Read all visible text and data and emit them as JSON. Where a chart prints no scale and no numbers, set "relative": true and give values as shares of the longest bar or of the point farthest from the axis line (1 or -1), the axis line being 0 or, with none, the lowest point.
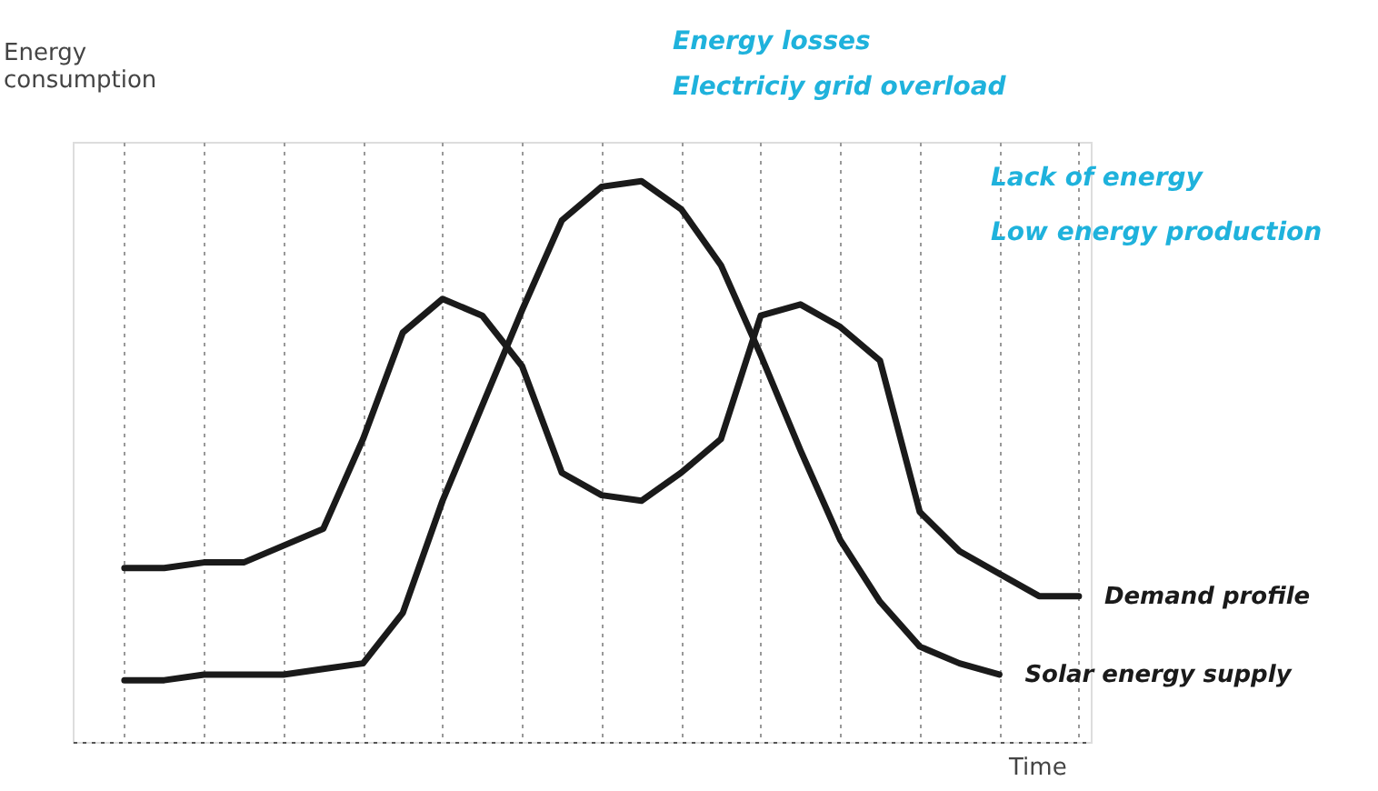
{
  "chart_data": {
    "type": "line",
    "relative": true,
    "xlabel": "Time",
    "ylabel": "Energy consumption",
    "categories": [
      null,
      null,
      null,
      null,
      null,
      null,
      null,
      null,
      null,
      null,
      null,
      null,
      null,
      null,
      null,
      null,
      null,
      null,
      null,
      null,
      null,
      null,
      null,
      null,
      null
    ],
    "series": [
      {
        "name": "Demand profile",
        "color": "#1a1a1a",
        "values": [
          0.31,
          0.31,
          0.32,
          0.32,
          0.35,
          0.38,
          0.54,
          0.73,
          0.79,
          0.76,
          0.67,
          0.48,
          0.44,
          0.43,
          0.48,
          0.54,
          0.76,
          0.78,
          0.74,
          0.68,
          0.41,
          0.34,
          0.3,
          0.26,
          0.26
        ]
      },
      {
        "name": "Solar energy supply",
        "color": "#1a1a1a",
        "values": [
          0.11,
          0.11,
          0.12,
          0.12,
          0.12,
          0.13,
          0.14,
          0.23,
          0.43,
          0.6,
          0.77,
          0.93,
          0.99,
          1.0,
          0.95,
          0.85,
          0.69,
          0.52,
          0.36,
          0.25,
          0.17,
          0.14,
          0.12,
          null,
          null
        ]
      }
    ],
    "annotations": [
      "Energy losses",
      "Electriciy grid overload",
      "Lack of energy",
      "Low energy production"
    ],
    "grid": "x",
    "marker": "none",
    "line_style": "solid"
  }
}
